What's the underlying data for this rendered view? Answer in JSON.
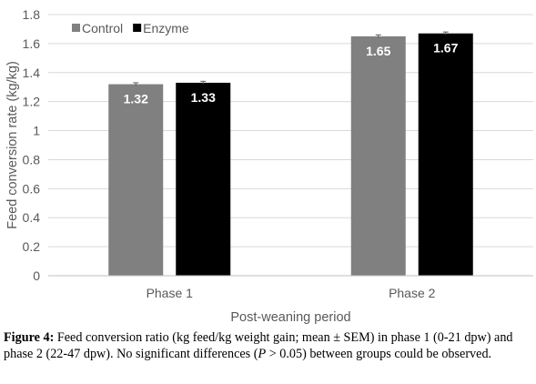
{
  "chart_data": {
    "type": "bar",
    "categories": [
      "Phase 1",
      "Phase 2"
    ],
    "series": [
      {
        "name": "Control",
        "values": [
          1.32,
          1.65
        ],
        "errors": [
          0.01,
          0.01
        ],
        "color": "#808080"
      },
      {
        "name": "Enzyme",
        "values": [
          1.33,
          1.67
        ],
        "errors": [
          0.01,
          0.01
        ],
        "color": "#000000"
      }
    ],
    "data_labels": [
      [
        "1.32",
        "1.65"
      ],
      [
        "1.33",
        "1.67"
      ]
    ],
    "title": "",
    "xlabel": "Post-weaning period",
    "ylabel": "Feed conversion rate (kg/kg)",
    "ylim": [
      0,
      1.8
    ],
    "yticks": [
      0,
      0.2,
      0.4,
      0.6,
      0.8,
      1,
      1.2,
      1.4,
      1.6,
      1.8
    ],
    "ytick_labels": [
      "0",
      "0.2",
      "0.4",
      "0.6",
      "0.8",
      "1",
      "1.2",
      "1.4",
      "1.6",
      "1.8"
    ],
    "grid": true,
    "legend_position": "top-left"
  },
  "caption": {
    "label": "Figure 4:",
    "text_a": " Feed conversion ratio (kg feed/kg weight gain; mean ± SEM) in phase 1 (0-21 dpw) and phase 2 (22-47 dpw). No significant differences (",
    "italic": "P",
    "text_b": " > 0.05) between groups could be observed."
  }
}
